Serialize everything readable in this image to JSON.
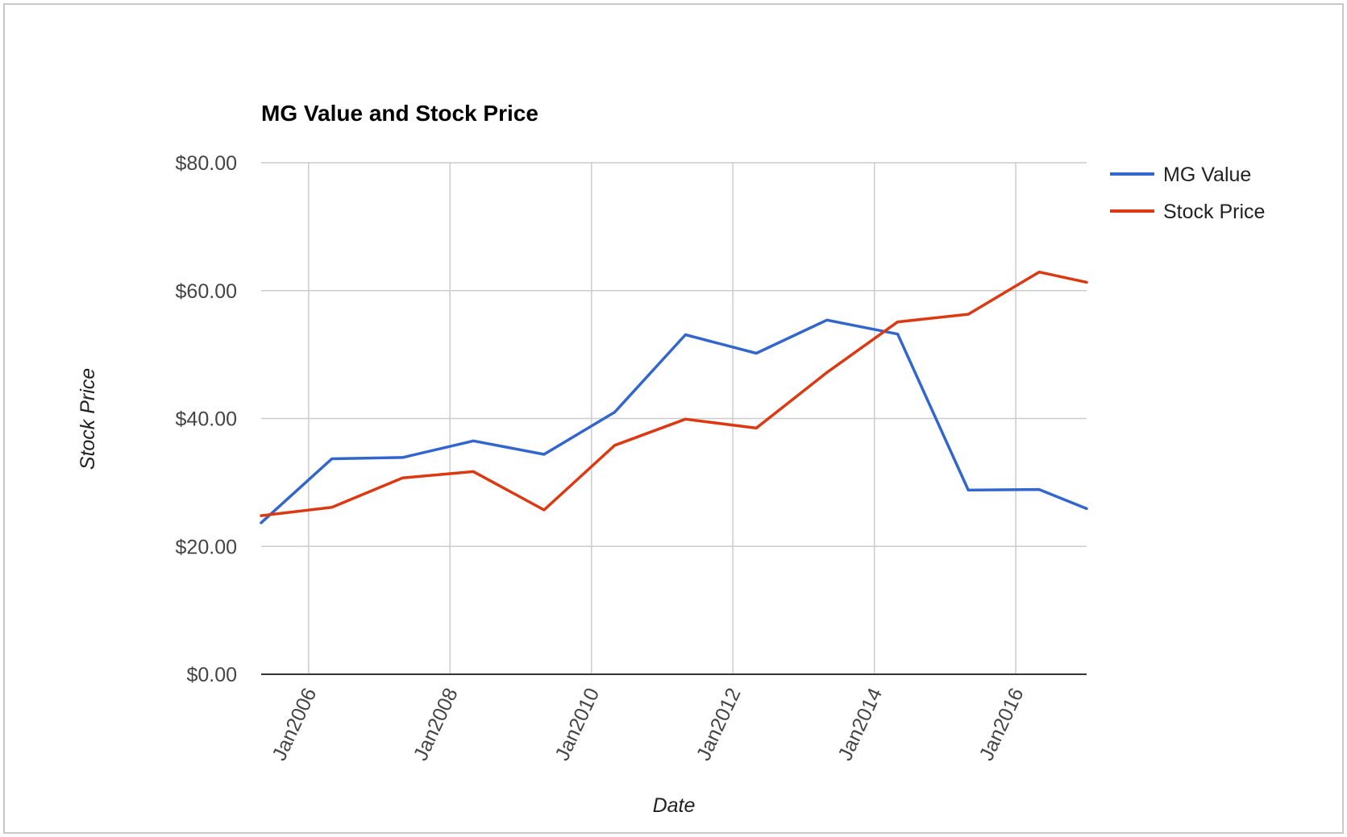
{
  "chart_data": {
    "type": "line",
    "title": "MG Value and Stock Price",
    "xlabel": "Date",
    "ylabel": "Stock Price",
    "ylim": [
      0,
      80
    ],
    "xlim": [
      "2005-05-01",
      "2017-01-01"
    ],
    "y_ticks": [
      "$0.00",
      "$20.00",
      "$40.00",
      "$60.00",
      "$80.00"
    ],
    "y_tick_values": [
      0,
      20,
      40,
      60,
      80
    ],
    "x_ticks": [
      "Jan2006",
      "Jan2008",
      "Jan2010",
      "Jan2012",
      "Jan2014",
      "Jan2016"
    ],
    "x_tick_dates": [
      "2006-01-01",
      "2008-01-01",
      "2010-01-01",
      "2012-01-01",
      "2014-01-01",
      "2016-01-01"
    ],
    "grid": true,
    "legend": "right",
    "x": [
      "2005-05-01",
      "2006-05-01",
      "2007-05-01",
      "2008-05-01",
      "2009-05-01",
      "2010-05-01",
      "2011-05-01",
      "2012-05-01",
      "2013-05-01",
      "2014-05-01",
      "2015-05-01",
      "2016-05-01",
      "2017-01-01"
    ],
    "series": [
      {
        "name": "MG Value",
        "color": "#3366cc",
        "values": [
          23.7,
          33.7,
          33.9,
          36.5,
          34.4,
          41.0,
          53.1,
          50.2,
          55.4,
          53.2,
          28.8,
          28.9,
          25.9
        ]
      },
      {
        "name": "Stock Price",
        "color": "#dc3912",
        "values": [
          24.8,
          26.1,
          30.7,
          31.7,
          25.7,
          35.8,
          39.9,
          38.5,
          47.2,
          55.1,
          56.3,
          62.9,
          61.3
        ]
      }
    ]
  }
}
